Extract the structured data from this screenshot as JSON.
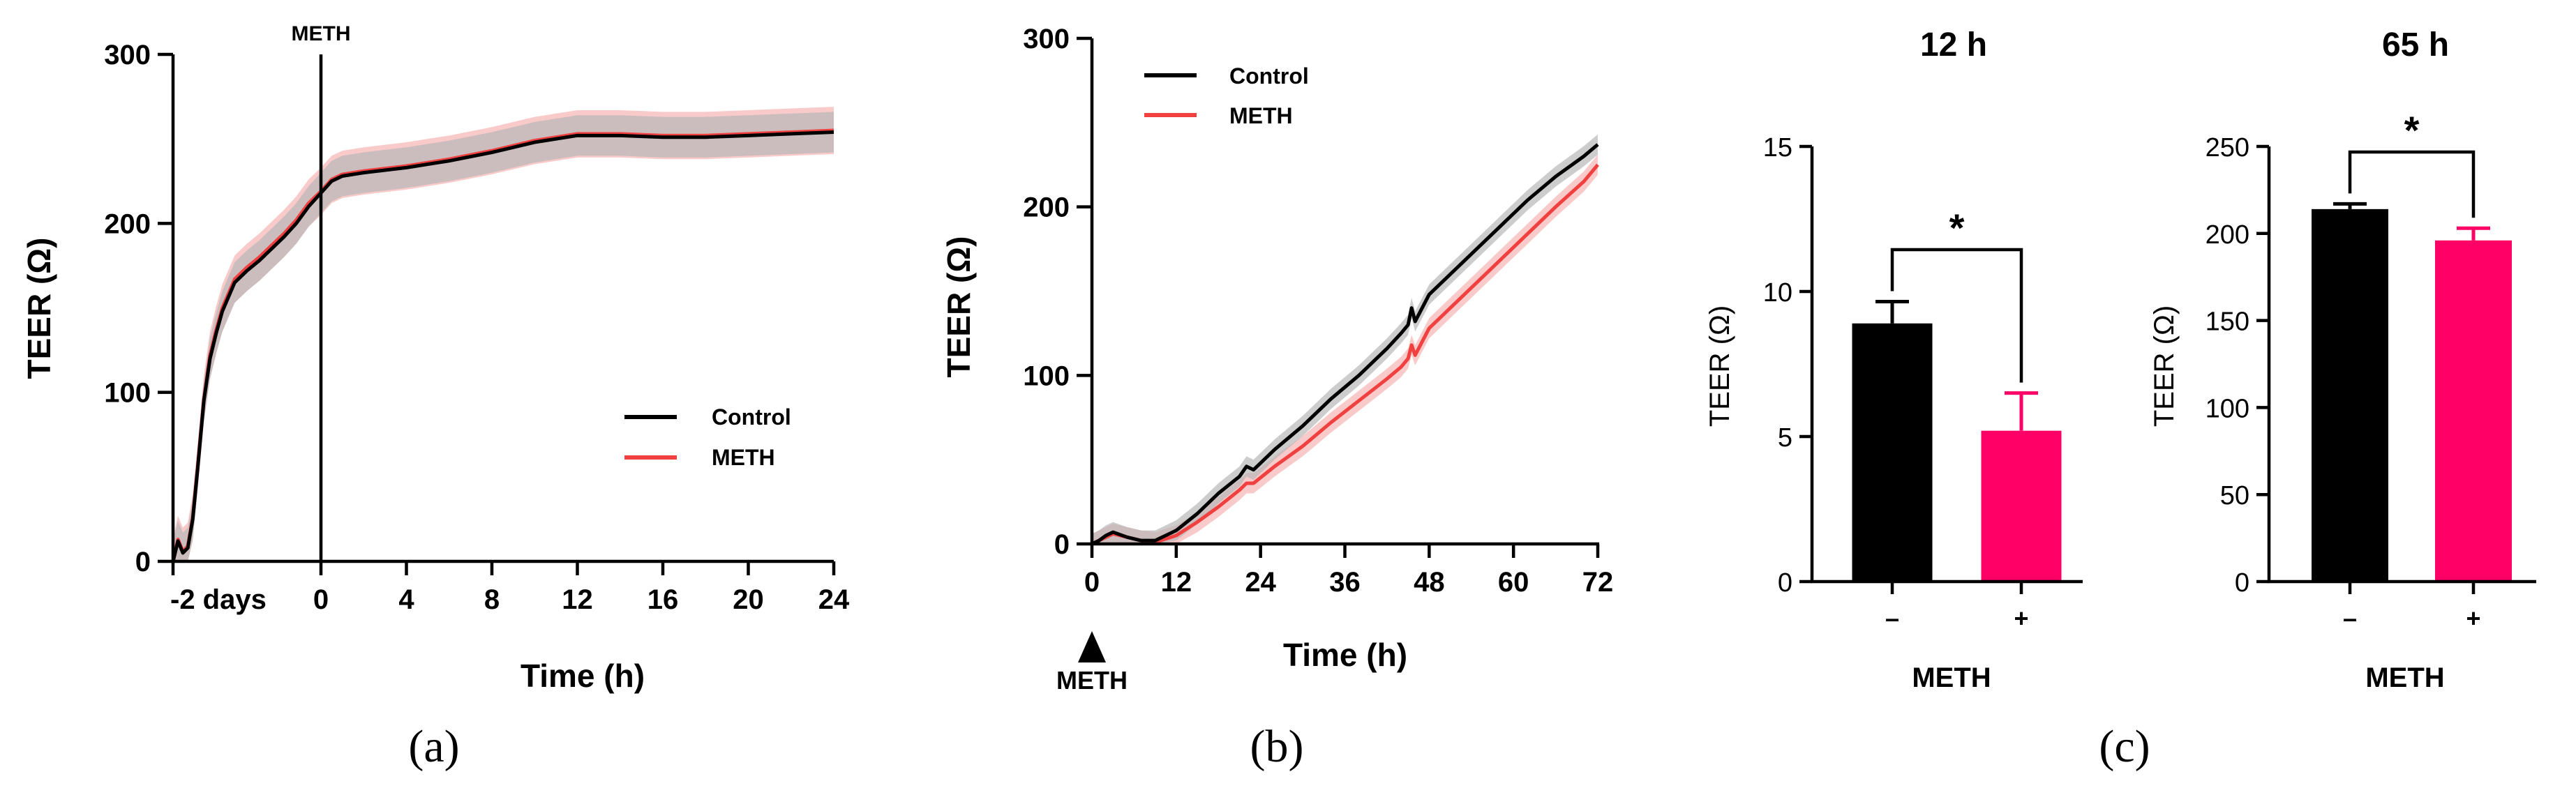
{
  "colors": {
    "control": "#000000",
    "meth_line": "#f04040",
    "meth_bar": "#ff0066",
    "band_control": "#b8b8b8",
    "band_meth": "#f6b4b4"
  },
  "chart_data": [
    {
      "panel": "(a)",
      "type": "line",
      "ylabel": "TEER (Ω)",
      "xlabel": "Time (h)",
      "ylim": [
        0,
        300
      ],
      "yticks": [
        "0",
        "100",
        "200",
        "300"
      ],
      "xticks": [
        "-2 days",
        "0",
        "4",
        "8",
        "12",
        "16",
        "20",
        "24"
      ],
      "tick_positions": [
        -12,
        0,
        4,
        8,
        12,
        16,
        20,
        24
      ],
      "xlim": [
        -12,
        24
      ],
      "annotation": "METH",
      "annotation_x": 0,
      "legend": [
        "Control",
        "METH"
      ],
      "legend_position": "right-middle",
      "series": [
        {
          "name": "Control",
          "x": [
            -12,
            -11.6,
            -11.2,
            -10.8,
            -10.4,
            -10,
            -9.5,
            -9,
            -8.5,
            -8,
            -7,
            -6,
            -5,
            -4,
            -3,
            -2,
            -1,
            0,
            0.5,
            1,
            2,
            4,
            6,
            8,
            10,
            12,
            14,
            16,
            18,
            20,
            22,
            24
          ],
          "y": [
            0,
            12,
            5,
            8,
            25,
            55,
            95,
            120,
            135,
            148,
            165,
            172,
            178,
            185,
            192,
            200,
            210,
            218,
            225,
            228,
            230,
            233,
            237,
            242,
            248,
            252,
            252,
            251,
            251,
            252,
            253,
            254
          ],
          "band": 12
        },
        {
          "name": "METH",
          "x": [
            -12,
            -11.6,
            -11.2,
            -10.8,
            -10.4,
            -10,
            -9.5,
            -9,
            -8.5,
            -8,
            -7,
            -6,
            -5,
            -4,
            -3,
            -2,
            -1,
            0,
            0.5,
            1,
            2,
            4,
            6,
            8,
            10,
            12,
            14,
            16,
            18,
            20,
            22,
            24
          ],
          "y": [
            0,
            13,
            6,
            9,
            26,
            56,
            96,
            122,
            137,
            150,
            167,
            174,
            180,
            187,
            194,
            202,
            212,
            219,
            226,
            229,
            231,
            234,
            238,
            243,
            249,
            253,
            253,
            252,
            252,
            253,
            254,
            255
          ],
          "band": 14
        }
      ]
    },
    {
      "panel": "(b)",
      "type": "line",
      "ylabel": "TEER (Ω)",
      "xlabel": "Time (h)",
      "ylim": [
        0,
        300
      ],
      "yticks": [
        "0",
        "100",
        "200",
        "300"
      ],
      "xlim": [
        0,
        72
      ],
      "xticks": [
        "0",
        "12",
        "24",
        "36",
        "48",
        "60",
        "72"
      ],
      "tick_positions": [
        0,
        12,
        24,
        36,
        48,
        60,
        72
      ],
      "annotation": "METH",
      "annotation_x": 0,
      "legend": [
        "Control",
        "METH"
      ],
      "legend_position": "top-left",
      "series": [
        {
          "name": "Control",
          "x": [
            0,
            1,
            2,
            3,
            5,
            7,
            9,
            12,
            15,
            18,
            21,
            22,
            23,
            26,
            30,
            34,
            38,
            42,
            44,
            45,
            45.5,
            46,
            48,
            51,
            54,
            58,
            62,
            66,
            70,
            72
          ],
          "y": [
            0,
            2,
            5,
            7,
            4,
            2,
            2,
            8,
            18,
            30,
            40,
            46,
            44,
            56,
            70,
            86,
            100,
            116,
            125,
            130,
            140,
            132,
            148,
            160,
            172,
            188,
            204,
            218,
            230,
            237
          ],
          "band": 6
        },
        {
          "name": "METH",
          "x": [
            0,
            1,
            2,
            3,
            5,
            7,
            9,
            12,
            15,
            18,
            21,
            22,
            23,
            26,
            30,
            34,
            38,
            42,
            44,
            45,
            45.5,
            46,
            48,
            51,
            54,
            58,
            62,
            66,
            70,
            72
          ],
          "y": [
            0,
            2,
            4,
            6,
            4,
            2,
            1,
            5,
            13,
            22,
            32,
            36,
            36,
            46,
            58,
            72,
            85,
            98,
            105,
            110,
            118,
            112,
            128,
            140,
            152,
            168,
            184,
            200,
            215,
            225
          ],
          "band": 6
        }
      ]
    },
    {
      "panel": "(c)",
      "type": "bar",
      "title": "12 h",
      "ylabel": "TEER (Ω)",
      "xlabel": "METH",
      "categories": [
        "–",
        "+"
      ],
      "values": [
        8.9,
        5.2
      ],
      "errors": [
        0.75,
        1.3
      ],
      "ylim": [
        0,
        15
      ],
      "yticks": [
        "0",
        "5",
        "10",
        "15"
      ],
      "significance": "*"
    },
    {
      "panel": "(c)",
      "type": "bar",
      "title": "65 h",
      "ylabel": "TEER (Ω)",
      "xlabel": "METH",
      "categories": [
        "–",
        "+"
      ],
      "values": [
        214,
        196
      ],
      "errors": [
        3,
        7
      ],
      "ylim": [
        0,
        250
      ],
      "yticks": [
        "0",
        "50",
        "100",
        "150",
        "200",
        "250"
      ],
      "significance": "*"
    }
  ],
  "panel_labels": [
    "(a)",
    "(b)",
    "(c)"
  ]
}
